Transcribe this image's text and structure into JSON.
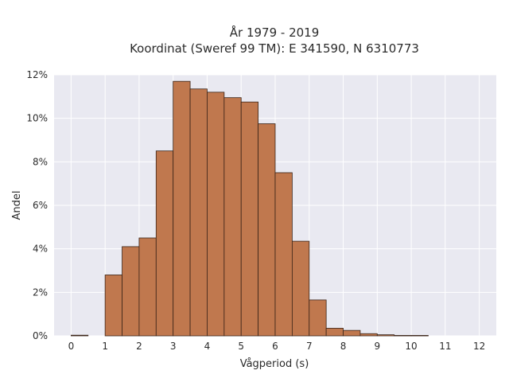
{
  "chart_data": {
    "type": "bar",
    "title": "År 1979 - 2019",
    "subtitle": "Koordinat (Sweref 99 TM): E 341590, N 6310773",
    "xlabel": "Vågperiod (s)",
    "ylabel": "Andel",
    "xlim": [
      -0.5,
      12.5
    ],
    "ylim": [
      0,
      12
    ],
    "xticks": [
      0,
      1,
      2,
      3,
      4,
      5,
      6,
      7,
      8,
      9,
      10,
      11,
      12
    ],
    "xtick_labels": [
      "0",
      "1",
      "2",
      "3",
      "4",
      "5",
      "6",
      "7",
      "8",
      "9",
      "10",
      "11",
      "12"
    ],
    "yticks": [
      0,
      2,
      4,
      6,
      8,
      10,
      12
    ],
    "ytick_labels": [
      "0%",
      "2%",
      "4%",
      "6%",
      "8%",
      "10%",
      "12%"
    ],
    "bin_width": 0.5,
    "bins": [
      {
        "start": 0.0,
        "value": 0.03
      },
      {
        "start": 1.0,
        "value": 2.8
      },
      {
        "start": 1.5,
        "value": 4.1
      },
      {
        "start": 2.0,
        "value": 4.5
      },
      {
        "start": 2.5,
        "value": 8.5
      },
      {
        "start": 3.0,
        "value": 11.7
      },
      {
        "start": 3.5,
        "value": 11.35
      },
      {
        "start": 4.0,
        "value": 11.2
      },
      {
        "start": 4.5,
        "value": 10.95
      },
      {
        "start": 5.0,
        "value": 10.75
      },
      {
        "start": 5.5,
        "value": 9.75
      },
      {
        "start": 6.0,
        "value": 7.5
      },
      {
        "start": 6.5,
        "value": 4.35
      },
      {
        "start": 7.0,
        "value": 1.65
      },
      {
        "start": 7.5,
        "value": 0.35
      },
      {
        "start": 8.0,
        "value": 0.25
      },
      {
        "start": 8.5,
        "value": 0.1
      },
      {
        "start": 9.0,
        "value": 0.05
      },
      {
        "start": 9.5,
        "value": 0.02
      },
      {
        "start": 10.0,
        "value": 0.02
      }
    ],
    "grid": true,
    "bar_color": "#c0784e",
    "bar_edge_color": "#3a2418",
    "plot_background": "#e9e9f1"
  }
}
